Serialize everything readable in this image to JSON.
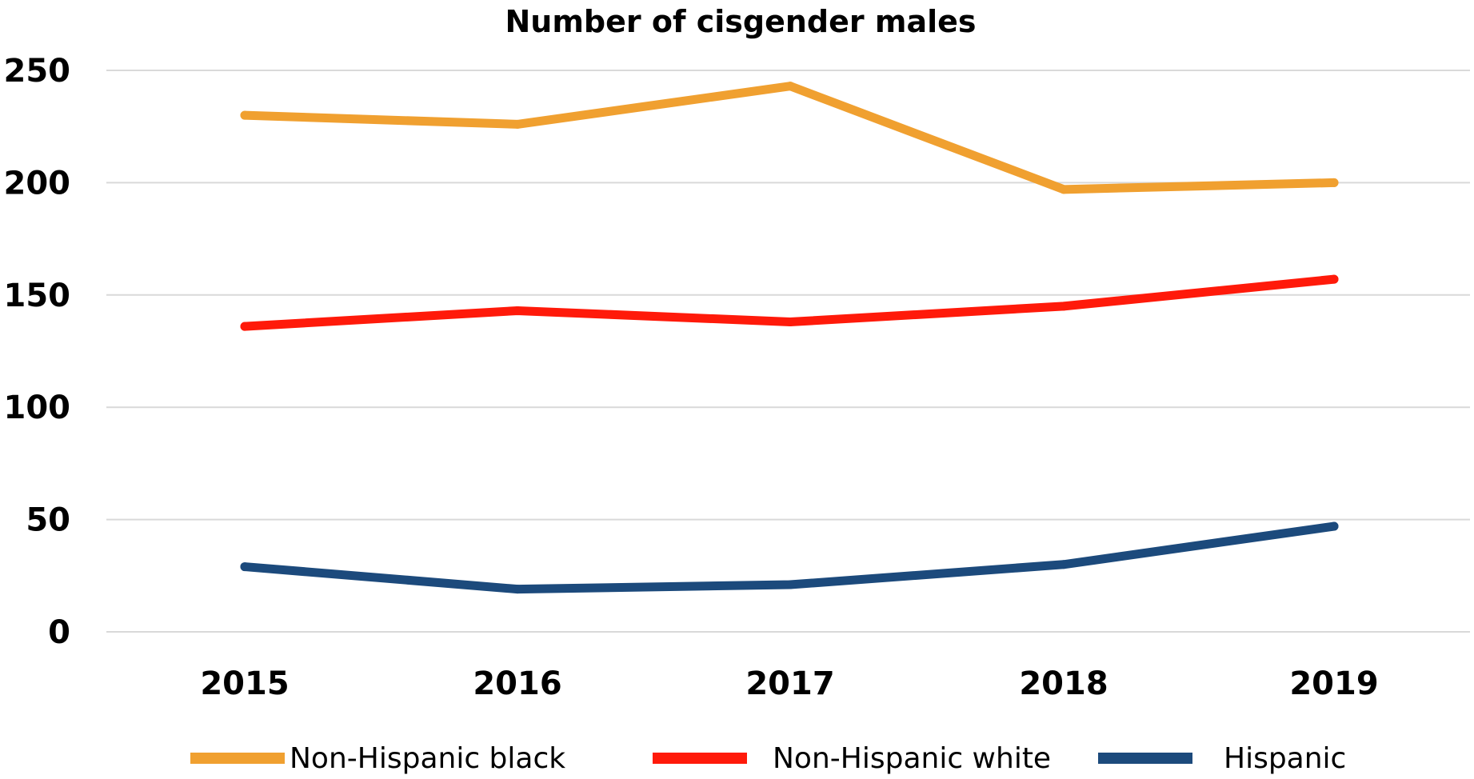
{
  "chart_data": {
    "type": "line",
    "title": "Number of cisgender males",
    "xlabel": "",
    "ylabel": "",
    "categories": [
      "2015",
      "2016",
      "2017",
      "2018",
      "2019"
    ],
    "ylim": [
      0,
      250
    ],
    "yticks": [
      0,
      50,
      100,
      150,
      200,
      250
    ],
    "grid": true,
    "legend_position": "bottom",
    "series": [
      {
        "name": "Non-Hispanic black",
        "color": "#f0a030",
        "values": [
          230,
          226,
          243,
          197,
          200
        ]
      },
      {
        "name": "Non-Hispanic white",
        "color": "#ff1a0a",
        "values": [
          136,
          143,
          138,
          145,
          157
        ]
      },
      {
        "name": "Hispanic",
        "color": "#1c4a7c",
        "values": [
          29,
          19,
          21,
          30,
          47
        ]
      }
    ]
  }
}
